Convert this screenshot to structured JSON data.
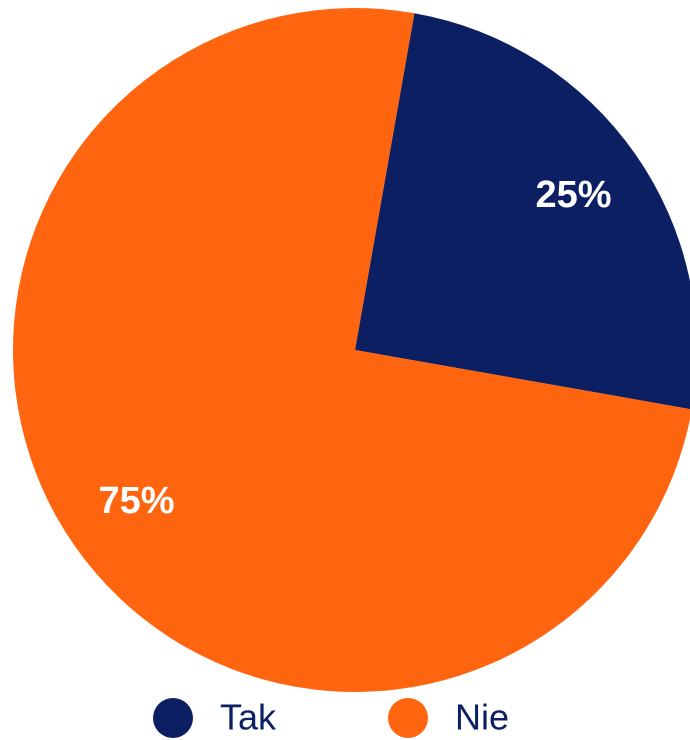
{
  "chart_data": {
    "type": "pie",
    "categories": [
      "Tak",
      "Nie"
    ],
    "values": [
      25,
      75
    ],
    "value_labels": [
      "25%",
      "75%"
    ],
    "colors": [
      "#0c1f63",
      "#ff640f"
    ],
    "legend": "bottom"
  }
}
